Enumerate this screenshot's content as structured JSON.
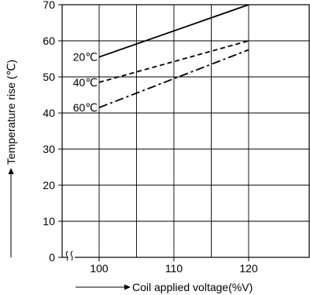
{
  "chart_data": {
    "type": "line",
    "xlabel": "Coil applied voltage(%V)",
    "ylabel": "Temperature rise (℃)",
    "xlim": [
      95,
      125
    ],
    "ylim": [
      0,
      70
    ],
    "x_ticks": [
      100,
      110,
      120
    ],
    "y_ticks": [
      0,
      10,
      20,
      30,
      40,
      50,
      60,
      70
    ],
    "x_axis_break": true,
    "grid": true,
    "series": [
      {
        "name": "20℃",
        "style": "solid",
        "points": [
          [
            100,
            55.5
          ],
          [
            120,
            70
          ]
        ]
      },
      {
        "name": "40℃",
        "style": "dashed",
        "points": [
          [
            100,
            48.5
          ],
          [
            120,
            60
          ]
        ]
      },
      {
        "name": "60℃",
        "style": "dash-dot",
        "points": [
          [
            100,
            41.5
          ],
          [
            120,
            57.5
          ]
        ]
      }
    ]
  }
}
